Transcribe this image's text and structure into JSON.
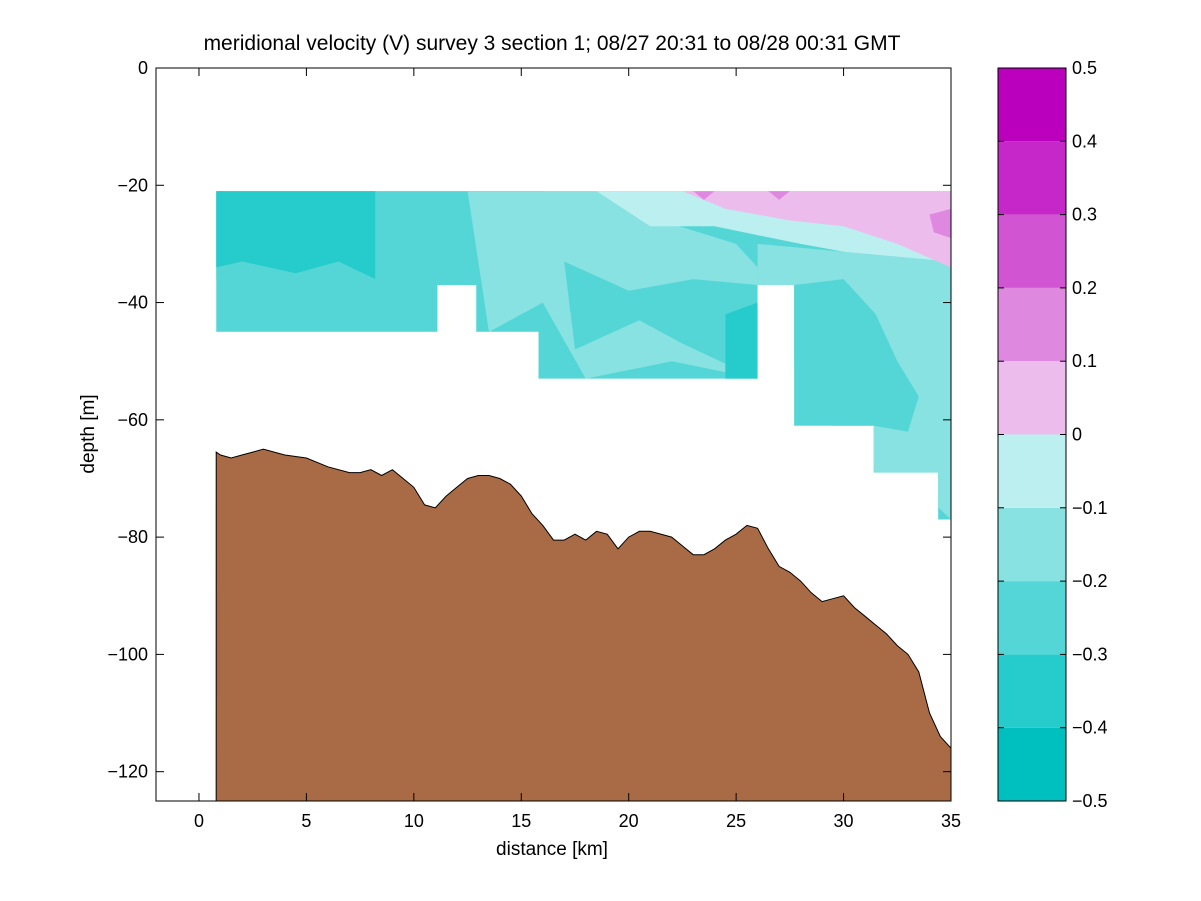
{
  "chart_data": {
    "type": "heatmap",
    "title": "meridional velocity (V) survey 3 section 1; 08/27 20:31 to 08/28 00:31 GMT",
    "xlabel": "distance [km]",
    "ylabel": "depth [m]",
    "xlim": [
      -2,
      35
    ],
    "ylim": [
      -125,
      0
    ],
    "xticks": [
      0,
      5,
      10,
      15,
      20,
      25,
      30,
      35
    ],
    "yticks": [
      0,
      -20,
      -40,
      -60,
      -80,
      -100,
      -120
    ],
    "grid": false,
    "colorbar": {
      "range": [
        -0.5,
        0.5
      ],
      "ticks": [
        0.5,
        0.4,
        0.3,
        0.2,
        0.1,
        0,
        -0.1,
        -0.2,
        -0.3,
        -0.4,
        -0.5
      ],
      "levels": [
        {
          "from": -0.5,
          "to": -0.4,
          "color": "#00bfbf"
        },
        {
          "from": -0.4,
          "to": -0.3,
          "color": "#26cbcb"
        },
        {
          "from": -0.3,
          "to": -0.2,
          "color": "#55d6d6"
        },
        {
          "from": -0.2,
          "to": -0.1,
          "color": "#88e2e2"
        },
        {
          "from": -0.1,
          "to": 0.0,
          "color": "#bcefef"
        },
        {
          "from": 0.0,
          "to": 0.1,
          "color": "#ecbced"
        },
        {
          "from": 0.1,
          "to": 0.2,
          "color": "#df88e0"
        },
        {
          "from": 0.2,
          "to": 0.3,
          "color": "#d154d3"
        },
        {
          "from": 0.3,
          "to": 0.4,
          "color": "#c527c8"
        },
        {
          "from": 0.4,
          "to": 0.5,
          "color": "#ba00bd"
        }
      ]
    },
    "data_region": {
      "columns": [
        {
          "x_range": [
            0.8,
            11.1
          ],
          "depth_range": [
            -21,
            -45
          ]
        },
        {
          "x_range": [
            11.1,
            12.9
          ],
          "depth_range": [
            -21,
            -37
          ]
        },
        {
          "x_range": [
            12.9,
            15.8
          ],
          "depth_range": [
            -21,
            -45
          ]
        },
        {
          "x_range": [
            15.8,
            26.0
          ],
          "depth_range": [
            -21,
            -53
          ]
        },
        {
          "x_range": [
            26.0,
            27.7
          ],
          "depth_range": [
            -21,
            -37
          ]
        },
        {
          "x_range": [
            27.7,
            31.4
          ],
          "depth_range": [
            -21,
            -61
          ]
        },
        {
          "x_range": [
            31.4,
            34.4
          ],
          "depth_range": [
            -21,
            -69
          ]
        },
        {
          "x_range": [
            34.4,
            35.0
          ],
          "depth_range": [
            -21,
            -77
          ]
        }
      ],
      "colored_zones": [
        {
          "level": -0.3,
          "x": [
            0.8,
            16.0,
            15.6,
            11.0,
            8.0,
            4.0,
            0.8
          ],
          "y": [
            -21,
            -21,
            -30,
            -33,
            -32,
            -35,
            -36
          ]
        },
        {
          "level": -0.4,
          "x": [
            0.8,
            8.2,
            8.2,
            6.5,
            4.5,
            2.0,
            0.8
          ],
          "y": [
            -21,
            -21,
            -36,
            -33,
            -35,
            -33,
            -34
          ]
        },
        {
          "level": -0.2,
          "x": [
            12.5,
            19.5,
            21.5,
            25.0,
            26.0,
            26.0,
            22.0,
            18.0,
            16.0,
            13.5
          ],
          "y": [
            -21,
            -21,
            -26,
            -30,
            -34,
            -53,
            -50,
            -53,
            -40,
            -45
          ]
        },
        {
          "level": -0.3,
          "x": [
            17.0,
            20.0,
            23.0,
            26.0,
            26.0,
            22.5,
            20.5,
            17.5
          ],
          "y": [
            -33,
            -38,
            -36,
            -37,
            -53,
            -47,
            -43,
            -48
          ]
        },
        {
          "level": -0.4,
          "x": [
            24.5,
            26.0,
            26.0,
            24.5
          ],
          "y": [
            -42,
            -40,
            -53,
            -53
          ]
        },
        {
          "level": -0.1,
          "x": [
            18.5,
            22.0,
            27.0,
            30.0,
            35.0,
            35.0,
            31.0,
            28.0,
            24.0,
            21.0
          ],
          "y": [
            -21,
            -21,
            -21,
            -24,
            -29,
            -35,
            -32,
            -30,
            -27,
            -27
          ]
        },
        {
          "level": -0.2,
          "x": [
            26.0,
            35.0,
            35.0,
            33.0,
            31.5,
            29.5,
            27.7,
            26.0
          ],
          "y": [
            -30,
            -33,
            -77,
            -70,
            -69,
            -61,
            -50,
            -37
          ]
        },
        {
          "level": -0.3,
          "x": [
            27.7,
            30.0,
            31.5,
            32.5,
            33.5,
            33.0,
            31.4,
            27.7
          ],
          "y": [
            -37,
            -36,
            -42,
            -50,
            -56,
            -62,
            -61,
            -61
          ]
        },
        {
          "level": 0.0,
          "x": [
            22.5,
            27.0,
            31.0,
            35.0,
            35.0,
            32.5,
            30.0,
            27.5,
            24.5
          ],
          "y": [
            -21,
            -21,
            -21,
            -21,
            -34,
            -30,
            -27,
            -26,
            -24
          ]
        },
        {
          "level": 0.1,
          "x": [
            23.0,
            24.0,
            23.5
          ],
          "y": [
            -21,
            -21,
            -22.5
          ]
        },
        {
          "level": 0.1,
          "x": [
            26.5,
            27.5,
            27.0
          ],
          "y": [
            -21,
            -21,
            -22.5
          ]
        },
        {
          "level": 0.1,
          "x": [
            34.0,
            35.0,
            35.0,
            34.2
          ],
          "y": [
            -25,
            -24,
            -29,
            -28
          ]
        }
      ]
    },
    "bathymetry": {
      "fill_color": "#a96b46",
      "x": [
        0.8,
        1.0,
        1.5,
        2.0,
        2.5,
        3.0,
        3.5,
        4.0,
        5.0,
        6.0,
        7.0,
        7.5,
        8.0,
        8.5,
        9.0,
        9.5,
        10.0,
        10.5,
        11.0,
        11.5,
        12.0,
        12.5,
        13.0,
        13.5,
        14.0,
        14.5,
        15.0,
        15.5,
        16.0,
        16.5,
        17.0,
        17.5,
        18.0,
        18.5,
        19.0,
        19.5,
        20.0,
        20.5,
        21.0,
        22.0,
        22.5,
        23.0,
        23.5,
        24.0,
        24.5,
        25.0,
        25.5,
        26.0,
        26.5,
        27.0,
        27.5,
        28.0,
        28.5,
        29.0,
        29.5,
        30.0,
        30.5,
        31.0,
        31.5,
        32.0,
        32.5,
        33.0,
        33.5,
        34.0,
        34.5,
        35.0
      ],
      "y": [
        -65.5,
        -66.0,
        -66.5,
        -66.0,
        -65.5,
        -65.0,
        -65.5,
        -66.0,
        -66.5,
        -68.0,
        -69.0,
        -69.0,
        -68.5,
        -69.5,
        -68.5,
        -70.0,
        -71.5,
        -74.5,
        -75.0,
        -73.0,
        -71.5,
        -70.0,
        -69.5,
        -69.5,
        -70.0,
        -71.0,
        -73.0,
        -76.0,
        -78.0,
        -80.5,
        -80.5,
        -79.5,
        -80.5,
        -79.0,
        -79.5,
        -82.0,
        -80.0,
        -79.0,
        -79.0,
        -80.0,
        -81.5,
        -83.0,
        -83.0,
        -82.0,
        -80.5,
        -79.5,
        -78.0,
        -78.5,
        -82.0,
        -85.0,
        -86.0,
        -87.5,
        -89.5,
        -91.0,
        -90.5,
        -90.0,
        -92.0,
        -93.5,
        -95.0,
        -96.5,
        -98.5,
        -100.0,
        -103.0,
        -110.0,
        -114.0,
        -116.0
      ]
    }
  }
}
